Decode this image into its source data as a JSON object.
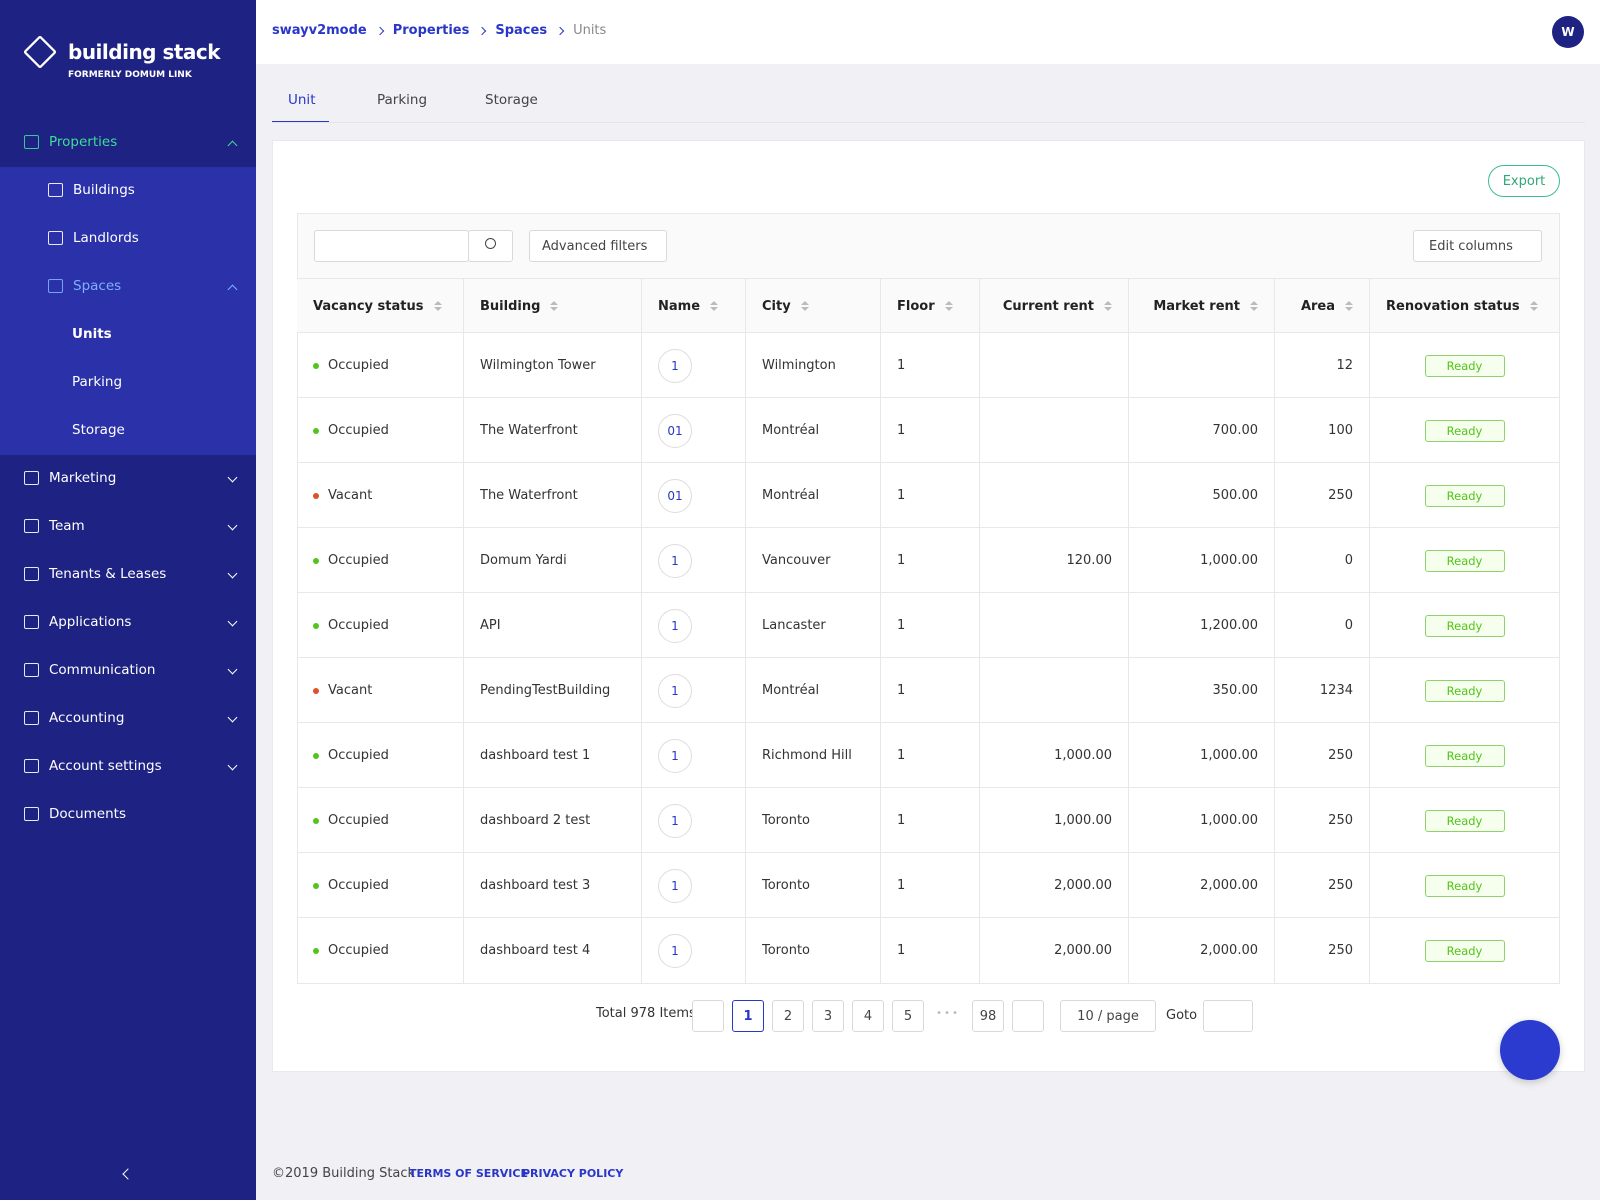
{
  "brand": {
    "name": "building stack",
    "tagline": "FORMERLY DOMUM LINK"
  },
  "sidebar": {
    "items": [
      {
        "label": "Properties",
        "children": [
          {
            "label": "Buildings"
          },
          {
            "label": "Landlords"
          },
          {
            "label": "Spaces",
            "children": [
              {
                "label": "Units"
              },
              {
                "label": "Parking"
              },
              {
                "label": "Storage"
              }
            ]
          }
        ]
      },
      {
        "label": "Marketing"
      },
      {
        "label": "Team"
      },
      {
        "label": "Tenants & Leases"
      },
      {
        "label": "Applications"
      },
      {
        "label": "Communication"
      },
      {
        "label": "Accounting"
      },
      {
        "label": "Account settings"
      },
      {
        "label": "Documents"
      }
    ]
  },
  "header": {
    "breadcrumb": [
      "swayv2mode",
      "Properties",
      "Spaces",
      "Units"
    ],
    "avatar": "W"
  },
  "tabs": [
    "Unit",
    "Parking",
    "Storage"
  ],
  "toolbar": {
    "export": "Export",
    "advanced_filters": "Advanced filters",
    "edit_columns": "Edit columns"
  },
  "table": {
    "columns": [
      "Vacancy status",
      "Building",
      "Name",
      "City",
      "Floor",
      "Current rent",
      "Market rent",
      "Area",
      "Renovation status"
    ],
    "rows": [
      {
        "dot": "#52c41a",
        "cells": [
          "Occupied",
          "Wilmington Tower",
          "1",
          "Wilmington",
          1,
          null,
          null,
          12,
          "Ready"
        ]
      },
      {
        "dot": "#52c41a",
        "cells": [
          "Occupied",
          "The Waterfront",
          "01",
          "Montréal",
          1,
          null,
          "700.00",
          100,
          "Ready"
        ]
      },
      {
        "dot": "#e0502a",
        "cells": [
          "Vacant",
          "The Waterfront",
          "01",
          "Montréal",
          1,
          null,
          "500.00",
          250,
          "Ready"
        ]
      },
      {
        "dot": "#52c41a",
        "cells": [
          "Occupied",
          "Domum Yardi",
          "1",
          "Vancouver",
          1,
          "120.00",
          "1,000.00",
          0,
          "Ready"
        ]
      },
      {
        "dot": "#52c41a",
        "cells": [
          "Occupied",
          "API",
          "1",
          "Lancaster",
          1,
          null,
          "1,200.00",
          0,
          "Ready"
        ]
      },
      {
        "dot": "#e0502a",
        "cells": [
          "Vacant",
          "PendingTestBuilding",
          "1",
          "Montréal",
          1,
          null,
          "350.00",
          1234,
          "Ready"
        ]
      },
      {
        "dot": "#52c41a",
        "cells": [
          "Occupied",
          "dashboard test 1",
          "1",
          "Richmond Hill",
          1,
          "1,000.00",
          "1,000.00",
          250,
          "Ready"
        ]
      },
      {
        "dot": "#52c41a",
        "cells": [
          "Occupied",
          "dashboard 2 test",
          "1",
          "Toronto",
          1,
          "1,000.00",
          "1,000.00",
          250,
          "Ready"
        ]
      },
      {
        "dot": "#52c41a",
        "cells": [
          "Occupied",
          "dashboard test 3",
          "1",
          "Toronto",
          1,
          "2,000.00",
          "2,000.00",
          250,
          "Ready"
        ]
      },
      {
        "dot": "#52c41a",
        "cells": [
          "Occupied",
          "dashboard test 4",
          "1",
          "Toronto",
          1,
          "2,000.00",
          "2,000.00",
          250,
          "Ready"
        ]
      }
    ]
  },
  "pagination": {
    "total": "Total 978 Items",
    "pages": [
      1,
      2,
      3,
      4,
      5,
      98
    ],
    "page_size": "10 / page",
    "goto": "Goto"
  },
  "footer": {
    "copyright": "©2019 Building Stack",
    "links": [
      "TERMS OF SERVICE",
      "PRIVACY POLICY"
    ]
  }
}
